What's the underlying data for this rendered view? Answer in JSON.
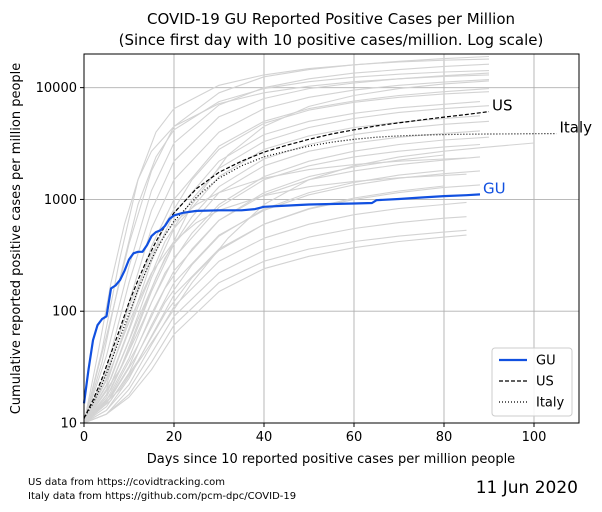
{
  "chart_data": {
    "type": "line",
    "title_line1": "COVID-19 GU Reported Positive Cases per Million",
    "title_line2": "(Since first day with 10 positive cases/million. Log scale)",
    "xlabel": "Days since 10 reported positive cases per million people",
    "ylabel": "Cumulative reported positive cases per million people",
    "xlim": [
      0,
      110
    ],
    "ylim": [
      10,
      20000
    ],
    "y_scale": "log",
    "grid": true,
    "x_ticks": [
      0,
      20,
      40,
      60,
      80,
      100
    ],
    "x_tick_labels": [
      "0",
      "20",
      "40",
      "60",
      "80",
      "100"
    ],
    "y_ticks": [
      10,
      100,
      1000,
      10000
    ],
    "y_tick_labels": [
      "10",
      "100",
      "1000",
      "10000"
    ],
    "legend_position": "bottom-right",
    "series": [
      {
        "name": "GU",
        "color": "#1150e0",
        "style": "solid",
        "label": "GU",
        "x": [
          0,
          1,
          2,
          3,
          4,
          5,
          6,
          7,
          8,
          9,
          10,
          11,
          12,
          13,
          14,
          15,
          16,
          17,
          18,
          19,
          20,
          22,
          25,
          30,
          35,
          38,
          40,
          45,
          50,
          55,
          60,
          64,
          65,
          70,
          75,
          80,
          85,
          88
        ],
        "y": [
          15,
          30,
          55,
          75,
          85,
          90,
          160,
          170,
          190,
          230,
          290,
          330,
          340,
          340,
          390,
          470,
          510,
          530,
          580,
          670,
          720,
          760,
          790,
          800,
          800,
          820,
          860,
          880,
          900,
          910,
          920,
          930,
          985,
          1010,
          1040,
          1070,
          1090,
          1110
        ]
      },
      {
        "name": "US",
        "color": "#000000",
        "style": "dashed",
        "label": "US",
        "x": [
          0,
          2,
          4,
          6,
          8,
          10,
          12,
          14,
          16,
          18,
          20,
          25,
          30,
          35,
          40,
          45,
          50,
          55,
          60,
          65,
          70,
          75,
          80,
          85,
          90
        ],
        "y": [
          11,
          16,
          25,
          42,
          70,
          120,
          190,
          290,
          420,
          580,
          760,
          1250,
          1750,
          2200,
          2650,
          3050,
          3450,
          3850,
          4200,
          4550,
          4850,
          5150,
          5450,
          5750,
          6100
        ]
      },
      {
        "name": "Italy",
        "color": "#000000",
        "style": "dotted",
        "label": "Italy",
        "x": [
          0,
          2,
          4,
          6,
          8,
          10,
          12,
          14,
          16,
          18,
          20,
          25,
          30,
          35,
          40,
          45,
          50,
          55,
          60,
          65,
          70,
          75,
          80,
          85,
          90,
          95,
          100,
          105
        ],
        "y": [
          11,
          15,
          22,
          35,
          58,
          95,
          155,
          240,
          350,
          480,
          640,
          1050,
          1550,
          2000,
          2400,
          2700,
          3000,
          3250,
          3450,
          3600,
          3700,
          3760,
          3800,
          3830,
          3850,
          3860,
          3870,
          3880
        ]
      }
    ],
    "background_series_color": "#d3d3d3",
    "background_series": [
      {
        "x": [
          0,
          5,
          10,
          15,
          20,
          30,
          40,
          50,
          60,
          70,
          80,
          90
        ],
        "y": [
          10,
          60,
          400,
          1800,
          4500,
          9000,
          12500,
          14500,
          16000,
          17200,
          18200,
          19000
        ]
      },
      {
        "x": [
          0,
          5,
          10,
          15,
          20,
          30,
          40,
          50,
          60,
          70,
          80,
          90
        ],
        "y": [
          10,
          40,
          250,
          1200,
          3200,
          7000,
          10000,
          12000,
          13500,
          14500,
          15500,
          16200
        ]
      },
      {
        "x": [
          0,
          5,
          10,
          15,
          20,
          30,
          40,
          50,
          60,
          70,
          80,
          90
        ],
        "y": [
          10,
          30,
          180,
          800,
          2200,
          5500,
          8000,
          9800,
          11000,
          12000,
          12800,
          13500
        ]
      },
      {
        "x": [
          0,
          5,
          10,
          15,
          20,
          30,
          40,
          50,
          60,
          70,
          80,
          90
        ],
        "y": [
          10,
          25,
          120,
          550,
          1500,
          4000,
          6500,
          8200,
          9500,
          10500,
          11200,
          11800
        ]
      },
      {
        "x": [
          0,
          5,
          10,
          15,
          20,
          30,
          40,
          50,
          60,
          70,
          80,
          90
        ],
        "y": [
          10,
          22,
          90,
          380,
          1000,
          3000,
          5000,
          6500,
          7600,
          8500,
          9200,
          9800
        ]
      },
      {
        "x": [
          0,
          5,
          10,
          15,
          20,
          30,
          40,
          50,
          60,
          70,
          80,
          88
        ],
        "y": [
          10,
          20,
          70,
          280,
          750,
          2200,
          3800,
          5000,
          5900,
          6600,
          7100,
          7500
        ]
      },
      {
        "x": [
          0,
          5,
          10,
          15,
          20,
          30,
          40,
          50,
          60,
          70,
          80,
          88
        ],
        "y": [
          10,
          18,
          55,
          200,
          550,
          1600,
          2800,
          3700,
          4400,
          4900,
          5300,
          5600
        ]
      },
      {
        "x": [
          0,
          5,
          10,
          15,
          20,
          30,
          40,
          50,
          60,
          70,
          80,
          88
        ],
        "y": [
          10,
          17,
          45,
          150,
          400,
          1150,
          2000,
          2700,
          3200,
          3600,
          3900,
          4100
        ]
      },
      {
        "x": [
          0,
          5,
          10,
          15,
          20,
          30,
          40,
          50,
          60,
          70,
          80,
          88
        ],
        "y": [
          10,
          16,
          38,
          120,
          300,
          850,
          1500,
          2000,
          2400,
          2700,
          2950,
          3100
        ]
      },
      {
        "x": [
          0,
          5,
          10,
          15,
          20,
          30,
          40,
          50,
          60,
          70,
          80,
          88
        ],
        "y": [
          10,
          15,
          32,
          95,
          230,
          650,
          1100,
          1500,
          1800,
          2050,
          2250,
          2400
        ]
      },
      {
        "x": [
          0,
          5,
          10,
          15,
          20,
          30,
          40,
          50,
          60,
          70,
          80,
          88
        ],
        "y": [
          10,
          14,
          28,
          75,
          180,
          480,
          800,
          1100,
          1350,
          1550,
          1700,
          1800
        ]
      },
      {
        "x": [
          0,
          5,
          10,
          15,
          20,
          30,
          40,
          50,
          60,
          70,
          80,
          88
        ],
        "y": [
          10,
          13,
          25,
          60,
          140,
          360,
          600,
          820,
          1000,
          1150,
          1280,
          1350
        ]
      },
      {
        "x": [
          0,
          5,
          10,
          15,
          20,
          30,
          40,
          50,
          60,
          70,
          80,
          85
        ],
        "y": [
          10,
          13,
          22,
          50,
          110,
          280,
          450,
          600,
          730,
          830,
          900,
          940
        ]
      },
      {
        "x": [
          0,
          5,
          10,
          15,
          20,
          30,
          40,
          50,
          60,
          70,
          80,
          85
        ],
        "y": [
          10,
          12,
          20,
          42,
          90,
          220,
          350,
          460,
          550,
          620,
          680,
          700
        ]
      },
      {
        "x": [
          0,
          5,
          10,
          15,
          20,
          30,
          40,
          50,
          60,
          70,
          80,
          85
        ],
        "y": [
          10,
          12,
          18,
          35,
          75,
          180,
          280,
          360,
          420,
          470,
          510,
          530
        ]
      },
      {
        "x": [
          0,
          5,
          10,
          15,
          20,
          30,
          40,
          50,
          60,
          70,
          80,
          85
        ],
        "y": [
          10,
          12,
          17,
          30,
          62,
          150,
          240,
          310,
          370,
          420,
          460,
          480
        ]
      },
      {
        "x": [
          0,
          4,
          8,
          12,
          16,
          20,
          30,
          40,
          50,
          60,
          70,
          80,
          90
        ],
        "y": [
          10,
          45,
          300,
          1500,
          4000,
          6500,
          10500,
          13000,
          14800,
          16000,
          17000,
          17600,
          18000
        ]
      },
      {
        "x": [
          0,
          4,
          8,
          12,
          16,
          20,
          30,
          40,
          50,
          60,
          70,
          80,
          90
        ],
        "y": [
          10,
          35,
          200,
          900,
          2400,
          4200,
          7500,
          9800,
          11300,
          12400,
          13200,
          13800,
          14200
        ]
      },
      {
        "x": [
          0,
          6,
          12,
          18,
          24,
          30,
          40,
          50,
          60,
          70,
          80,
          90
        ],
        "y": [
          10,
          30,
          150,
          600,
          1500,
          2800,
          4800,
          6300,
          7400,
          8200,
          8800,
          9200
        ]
      },
      {
        "x": [
          0,
          6,
          12,
          18,
          24,
          30,
          40,
          50,
          60,
          70,
          80,
          90
        ],
        "y": [
          10,
          25,
          110,
          420,
          1000,
          1900,
          3300,
          4400,
          5300,
          6000,
          6500,
          6900
        ]
      },
      {
        "x": [
          0,
          6,
          12,
          18,
          24,
          30,
          40,
          50,
          60,
          70,
          80,
          90
        ],
        "y": [
          10,
          22,
          85,
          300,
          700,
          1300,
          2300,
          3100,
          3800,
          4300,
          4700,
          5000
        ]
      },
      {
        "x": [
          0,
          6,
          12,
          18,
          24,
          30,
          40,
          50,
          60,
          70,
          80,
          90
        ],
        "y": [
          10,
          20,
          65,
          220,
          500,
          900,
          1600,
          2200,
          2700,
          3100,
          3400,
          3600
        ]
      },
      {
        "x": [
          0,
          6,
          12,
          18,
          24,
          30,
          40,
          50,
          60,
          70,
          80
        ],
        "y": [
          10,
          18,
          50,
          160,
          360,
          650,
          1150,
          1600,
          1950,
          2250,
          2500
        ]
      },
      {
        "x": [
          0,
          6,
          12,
          18,
          24,
          30,
          40,
          50,
          60,
          70,
          80
        ],
        "y": [
          10,
          17,
          42,
          120,
          260,
          470,
          820,
          1150,
          1420,
          1650,
          1820
        ]
      },
      {
        "x": [
          0,
          6,
          12,
          18,
          24,
          30,
          40,
          50,
          60,
          70,
          80
        ],
        "y": [
          10,
          16,
          36,
          95,
          200,
          350,
          600,
          830,
          1030,
          1190,
          1320
        ]
      },
      {
        "x": [
          0,
          5,
          10,
          15,
          20,
          25,
          30,
          40,
          50,
          60,
          70,
          80,
          85
        ],
        "y": [
          10,
          28,
          110,
          330,
          620,
          900,
          1150,
          1550,
          1850,
          2050,
          2200,
          2300,
          2350
        ]
      },
      {
        "x": [
          0,
          5,
          10,
          15,
          20,
          25,
          30,
          40,
          50,
          60,
          70,
          80,
          85
        ],
        "y": [
          10,
          24,
          80,
          220,
          420,
          620,
          800,
          1080,
          1300,
          1450,
          1560,
          1640,
          1680
        ]
      },
      {
        "x": [
          0,
          8,
          16,
          24,
          32,
          40,
          50,
          60,
          70,
          80,
          90,
          100
        ],
        "y": [
          10,
          20,
          60,
          180,
          450,
          900,
          1500,
          2000,
          2400,
          2700,
          2950,
          3200
        ]
      },
      {
        "x": [
          0,
          8,
          16,
          24,
          32,
          40,
          50,
          60,
          70,
          80,
          90
        ],
        "y": [
          10,
          30,
          200,
          900,
          2500,
          4500,
          6800,
          8500,
          9800,
          10800,
          11500
        ]
      },
      {
        "x": [
          0,
          3,
          6,
          9,
          12,
          15,
          20,
          30,
          40,
          50,
          60,
          70,
          80,
          90
        ],
        "y": [
          10,
          40,
          180,
          600,
          1500,
          2700,
          4500,
          7200,
          9000,
          10300,
          11300,
          12000,
          12600,
          13000
        ]
      }
    ]
  },
  "footer": {
    "note_line1": "US data from https://covidtracking.com",
    "note_line2": "Italy data from https://github.com/pcm-dpc/COVID-19",
    "date": "11 Jun 2020"
  }
}
